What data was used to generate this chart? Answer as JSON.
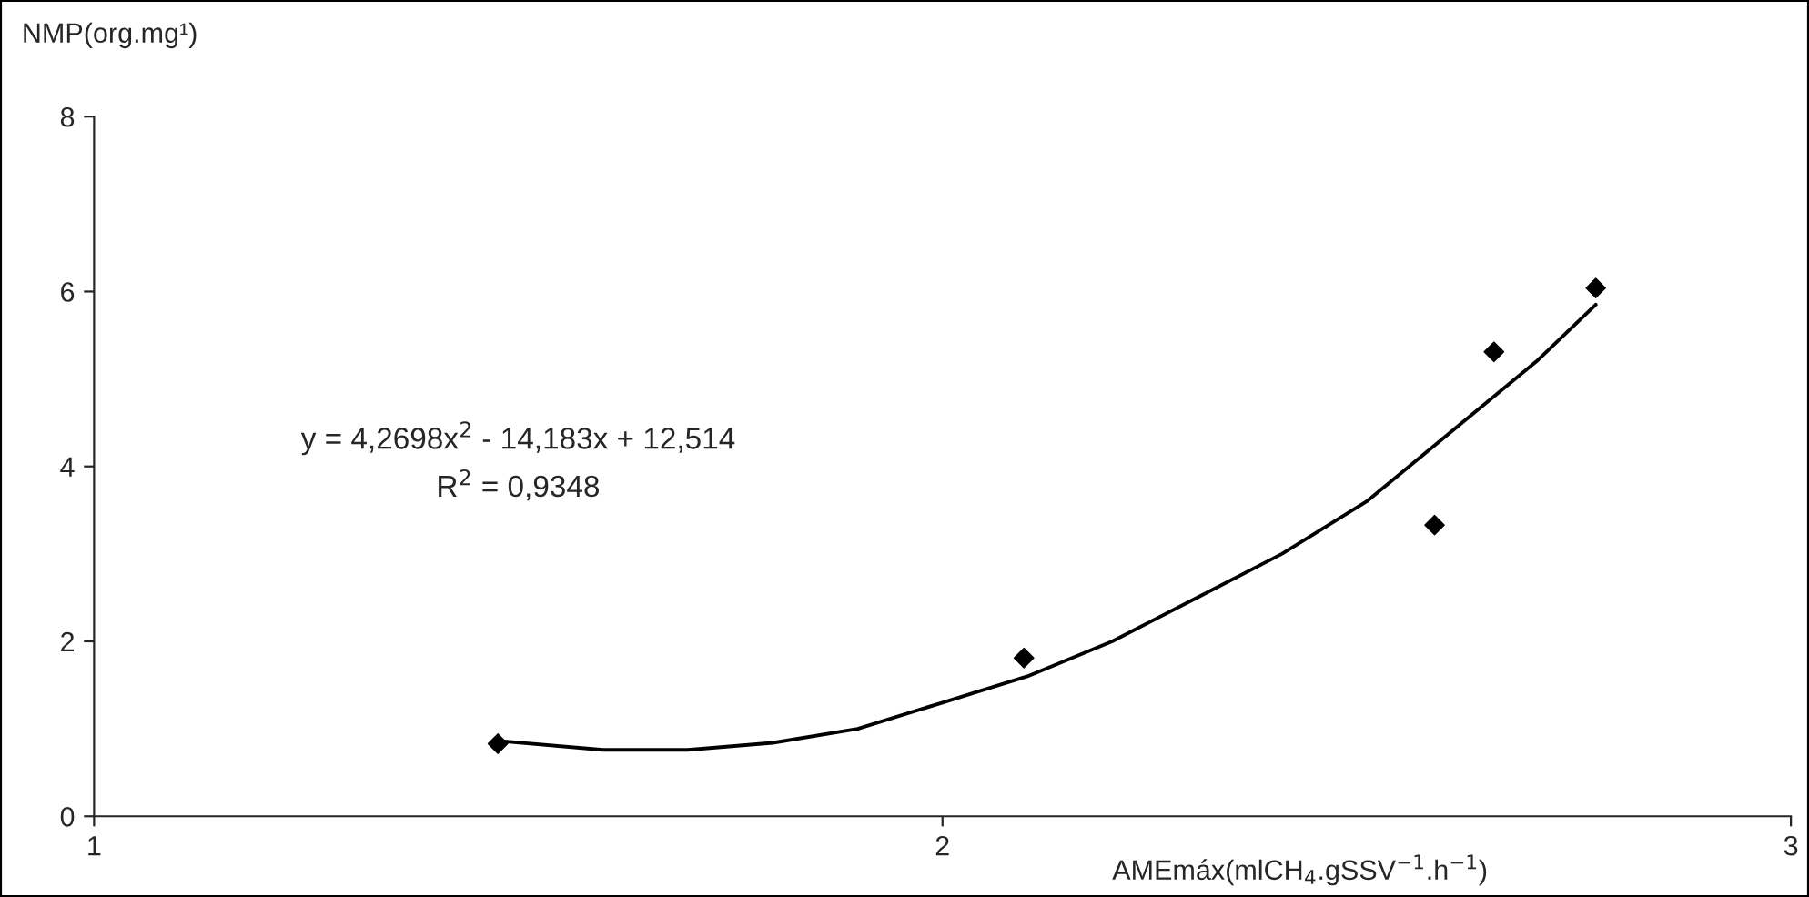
{
  "chart_data": {
    "type": "scatter",
    "xlabel": "AMEmáx(mlCH$_{4}$.gSSV$^{−1}$.h$^{−1}$)",
    "ylabel": "NMP(org.mg¹)",
    "series": [
      {
        "color": "#000000",
        "marker": "diamond",
        "x": [
          1.476,
          2.096,
          2.58,
          2.65,
          2.77
        ],
        "values": [
          0.83,
          1.81,
          3.33,
          5.31,
          6.04
        ]
      },
      {
        "type": "line",
        "color": "#000000",
        "marker": "none",
        "line_style": "solid",
        "x": [
          1.48,
          1.6,
          1.7,
          1.8,
          1.9,
          2.0,
          2.1,
          2.2,
          2.3,
          2.4,
          2.5,
          2.6,
          2.7,
          2.77
        ],
        "values": [
          0.86,
          0.76,
          0.76,
          0.84,
          1.0,
          1.3,
          1.6,
          2.0,
          2.5,
          3.0,
          3.6,
          4.4,
          5.2,
          5.85
        ]
      }
    ],
    "annotations": [
      "y = 4,2698x$^{2}$ - 14,183x + 12,514",
      "R$^{2}$ = 0,9348"
    ],
    "xlim": [
      1,
      3
    ],
    "xticks": [
      1,
      2,
      3
    ],
    "ylim": [
      0,
      8
    ],
    "yticks": [
      0,
      2,
      4,
      6,
      8
    ],
    "grid": false,
    "legend": false
  }
}
